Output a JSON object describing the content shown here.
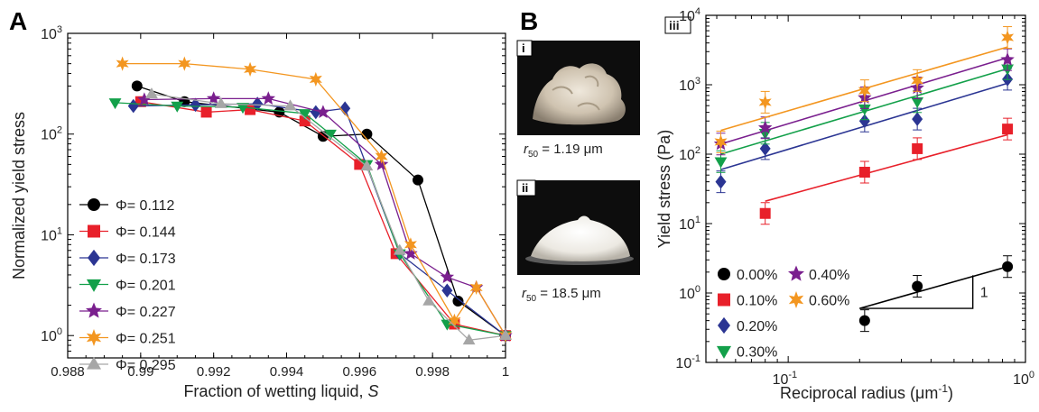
{
  "panel_labels": {
    "a": "A",
    "b": "B"
  },
  "photos": [
    {
      "label": "i",
      "caption_symbol": "r",
      "caption_sub": "50",
      "caption_value": " = 1.19 μm"
    },
    {
      "label": "ii",
      "caption_symbol": "r",
      "caption_sub": "50",
      "caption_value": " = 18.5 μm"
    }
  ],
  "colors": {
    "black": "#000000",
    "red": "#e8202a",
    "blue": "#2b3593",
    "green": "#13a04a",
    "purple": "#7a1f8e",
    "orange": "#f39620",
    "gray": "#a6a6a6"
  },
  "chart_data": [
    {
      "type": "line",
      "panel": "A",
      "xlabel": "Fraction of wetting liquid, ",
      "xlabel_italic": "S",
      "ylabel": "Normalized yield  stress",
      "xlim": [
        0.988,
        1.0
      ],
      "ylim": [
        0.6,
        1000
      ],
      "yscale": "log",
      "xticks": [
        0.988,
        0.99,
        0.992,
        0.994,
        0.996,
        0.998,
        1.0
      ],
      "xtick_labels": [
        "0.988",
        "0.99",
        "0.992",
        "0.994",
        "0.996",
        "0.998",
        "1"
      ],
      "yticks": [
        1,
        10,
        100,
        1000
      ],
      "ytick_base": "10",
      "ytick_exps": [
        "0",
        "1",
        "2",
        "3"
      ],
      "legend_position": "bottom-left",
      "series": [
        {
          "name": "Φ= 0.112",
          "color": "#000000",
          "marker": "circle",
          "x": [
            0.9899,
            0.9912,
            0.9938,
            0.995,
            0.9962,
            0.9976,
            0.9987,
            1.0
          ],
          "y": [
            300,
            210,
            165,
            95,
            100,
            35,
            2.2,
            1.0
          ]
        },
        {
          "name": "Φ= 0.144",
          "color": "#e8202a",
          "marker": "square",
          "x": [
            0.99,
            0.9918,
            0.993,
            0.9945,
            0.996,
            0.997,
            0.9986,
            1.0
          ],
          "y": [
            210,
            165,
            175,
            135,
            50,
            6.5,
            1.3,
            1.0
          ]
        },
        {
          "name": "Φ= 0.173",
          "color": "#2b3593",
          "marker": "diamond",
          "x": [
            0.9898,
            0.9915,
            0.9932,
            0.9948,
            0.9956,
            0.9971,
            0.9984,
            1.0
          ],
          "y": [
            190,
            195,
            200,
            165,
            180,
            6.5,
            2.8,
            1.0
          ]
        },
        {
          "name": "Φ= 0.201",
          "color": "#13a04a",
          "marker": "triangle-down",
          "x": [
            0.9893,
            0.991,
            0.9928,
            0.9945,
            0.9952,
            0.9962,
            0.9971,
            0.9984,
            1.0
          ],
          "y": [
            205,
            190,
            185,
            160,
            100,
            50,
            6.5,
            1.3,
            1.0
          ]
        },
        {
          "name": "Φ= 0.227",
          "color": "#7a1f8e",
          "marker": "star",
          "x": [
            0.9901,
            0.992,
            0.9935,
            0.995,
            0.9966,
            0.9974,
            0.9984,
            0.9992,
            1.0
          ],
          "y": [
            220,
            225,
            225,
            165,
            50,
            6.5,
            3.8,
            3.0,
            1.0
          ]
        },
        {
          "name": "Φ= 0.251",
          "color": "#f39620",
          "marker": "star",
          "x": [
            0.9895,
            0.9912,
            0.993,
            0.9948,
            0.9966,
            0.9974,
            0.9986,
            0.9992,
            1.0
          ],
          "y": [
            500,
            500,
            440,
            350,
            60,
            8.0,
            1.4,
            3.0,
            1.0
          ]
        },
        {
          "name": "Φ= 0.295",
          "color": "#a6a6a6",
          "marker": "triangle-up",
          "x": [
            0.9903,
            0.9922,
            0.9941,
            0.9962,
            0.9971,
            0.9979,
            0.999,
            1.0
          ],
          "y": [
            250,
            200,
            190,
            48,
            7.0,
            2.2,
            0.9,
            1.0
          ]
        }
      ]
    },
    {
      "type": "scatter",
      "panel": "B-iii",
      "panel_label": "iii",
      "xlabel": "Reciprocal radius (μm",
      "xlabel_sup": "-1",
      "xlabel_end": ")",
      "ylabel": "Yield stress (Pa)",
      "xscale": "log",
      "yscale": "log",
      "xlim": [
        0.045,
        1.0
      ],
      "ylim": [
        0.1,
        10000
      ],
      "xticks": [
        0.1,
        1.0
      ],
      "xtick_base": "10",
      "xtick_exps": [
        "-1",
        "0"
      ],
      "yticks": [
        0.1,
        1,
        10,
        100,
        1000,
        10000
      ],
      "ytick_base": "10",
      "ytick_exps": [
        "-1",
        "0",
        "1",
        "2",
        "3",
        "4"
      ],
      "legend_position": "bottom-left",
      "slope_annotation": "1",
      "series": [
        {
          "name": "0.00%",
          "color": "#000000",
          "marker": "circle",
          "x": [
            0.21,
            0.35,
            0.84
          ],
          "y": [
            0.4,
            1.25,
            2.4
          ],
          "fit": [
            0.2,
            0.84,
            0.6,
            2.4
          ]
        },
        {
          "name": "0.10%",
          "color": "#e8202a",
          "marker": "square",
          "x": [
            0.08,
            0.21,
            0.35,
            0.84
          ],
          "y": [
            14,
            55,
            120,
            230
          ],
          "fit": [
            0.08,
            0.84,
            21,
            190
          ]
        },
        {
          "name": "0.20%",
          "color": "#2b3593",
          "marker": "diamond",
          "x": [
            0.052,
            0.08,
            0.21,
            0.35,
            0.84
          ],
          "y": [
            40,
            120,
            300,
            320,
            1200
          ],
          "fit": [
            0.052,
            0.84,
            60,
            1050
          ]
        },
        {
          "name": "0.30%",
          "color": "#13a04a",
          "marker": "triangle-down",
          "x": [
            0.052,
            0.08,
            0.21,
            0.35,
            0.84
          ],
          "y": [
            78,
            200,
            450,
            570,
            1700
          ],
          "fit": [
            0.052,
            0.84,
            100,
            1700
          ]
        },
        {
          "name": "0.40%",
          "color": "#7a1f8e",
          "marker": "star",
          "x": [
            0.052,
            0.08,
            0.21,
            0.35,
            0.84
          ],
          "y": [
            140,
            240,
            650,
            900,
            2300
          ],
          "fit": [
            0.052,
            0.84,
            140,
            2450
          ]
        },
        {
          "name": "0.60%",
          "color": "#f39620",
          "marker": "star",
          "x": [
            0.052,
            0.08,
            0.21,
            0.35,
            0.84
          ],
          "y": [
            150,
            560,
            820,
            1150,
            4800
          ],
          "fit": [
            0.052,
            0.84,
            220,
            3500
          ]
        }
      ]
    }
  ]
}
